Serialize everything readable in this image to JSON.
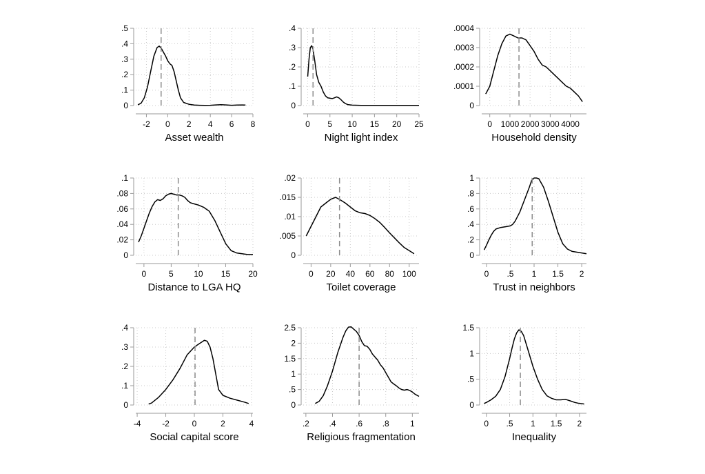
{
  "chart_data": [
    {
      "type": "line",
      "xlabel": "Asset wealth",
      "x_ticks": [
        -2,
        0,
        2,
        4,
        6,
        8
      ],
      "x_tick_labels": [
        "-2",
        "0",
        "2",
        "4",
        "6",
        "8"
      ],
      "y_ticks": [
        0,
        0.1,
        0.2,
        0.3,
        0.4,
        0.5
      ],
      "y_tick_labels": [
        "0",
        ".1",
        ".2",
        ".3",
        ".4",
        ".5"
      ],
      "xlim": [
        -3,
        8
      ],
      "ylim": [
        0,
        0.5
      ],
      "reference_line_x": -0.62,
      "x": [
        -2.8,
        -2.5,
        -2.2,
        -1.9,
        -1.6,
        -1.3,
        -1.0,
        -0.8,
        -0.6,
        -0.4,
        -0.2,
        0.0,
        0.2,
        0.4,
        0.6,
        0.8,
        1.0,
        1.2,
        1.5,
        2.0,
        2.5,
        3.0,
        3.5,
        4.0,
        4.5,
        5.0,
        5.5,
        6.0,
        6.5,
        7.0,
        7.3
      ],
      "y": [
        0.005,
        0.015,
        0.05,
        0.12,
        0.22,
        0.32,
        0.375,
        0.385,
        0.37,
        0.345,
        0.32,
        0.29,
        0.27,
        0.26,
        0.22,
        0.16,
        0.1,
        0.05,
        0.02,
        0.008,
        0.003,
        0.002,
        0.001,
        0.002,
        0.004,
        0.006,
        0.004,
        0.002,
        0.003,
        0.004,
        0.003
      ]
    },
    {
      "type": "line",
      "xlabel": "Night light index",
      "x_ticks": [
        0,
        5,
        10,
        15,
        20,
        25
      ],
      "x_tick_labels": [
        "0",
        "5",
        "10",
        "15",
        "20",
        "25"
      ],
      "y_ticks": [
        0,
        0.1,
        0.2,
        0.3,
        0.4
      ],
      "y_tick_labels": [
        "0",
        ".1",
        ".2",
        ".3",
        ".4"
      ],
      "xlim": [
        -1,
        25
      ],
      "ylim": [
        0,
        0.4
      ],
      "reference_line_x": 1.2,
      "x": [
        0.0,
        0.3,
        0.6,
        0.9,
        1.2,
        1.6,
        2.0,
        2.5,
        3.0,
        3.5,
        4.0,
        4.5,
        5.0,
        5.5,
        6.0,
        6.5,
        7.0,
        7.5,
        8.0,
        8.5,
        9.0,
        10.0,
        12.0,
        14.0,
        16.0,
        18.0,
        20.0,
        22.0,
        24.0,
        25.0
      ],
      "y": [
        0.15,
        0.24,
        0.3,
        0.31,
        0.29,
        0.23,
        0.16,
        0.12,
        0.1,
        0.07,
        0.05,
        0.04,
        0.038,
        0.036,
        0.04,
        0.045,
        0.04,
        0.03,
        0.018,
        0.01,
        0.005,
        0.002,
        0.001,
        0.001,
        0.001,
        0.001,
        0.001,
        0.001,
        0.001,
        0.001
      ]
    },
    {
      "type": "line",
      "xlabel": "Household density",
      "x_ticks": [
        0,
        1000,
        2000,
        3000,
        4000
      ],
      "x_tick_labels": [
        "0",
        "1000",
        "2000",
        "3000",
        "4000"
      ],
      "y_ticks": [
        0,
        0.0001,
        0.0002,
        0.0003,
        0.0004
      ],
      "y_tick_labels": [
        "0",
        ".0001",
        ".0002",
        ".0003",
        ".0004"
      ],
      "xlim": [
        -400,
        4800
      ],
      "ylim": [
        0,
        0.0004
      ],
      "reference_line_x": 1450,
      "x": [
        -200,
        0,
        200,
        400,
        600,
        800,
        1000,
        1200,
        1400,
        1600,
        1800,
        2000,
        2200,
        2400,
        2600,
        2800,
        3000,
        3200,
        3400,
        3600,
        3800,
        4000,
        4200,
        4400,
        4600
      ],
      "y": [
        6e-05,
        0.0001,
        0.00018,
        0.00026,
        0.00032,
        0.00036,
        0.00037,
        0.00036,
        0.00035,
        0.00035,
        0.00034,
        0.00031,
        0.00028,
        0.00024,
        0.00021,
        0.0002,
        0.00018,
        0.00016,
        0.00014,
        0.00012,
        0.0001,
        9e-05,
        7e-05,
        5e-05,
        2e-05
      ]
    },
    {
      "type": "line",
      "xlabel": "Distance to LGA HQ",
      "x_ticks": [
        0,
        5,
        10,
        15,
        20
      ],
      "x_tick_labels": [
        "0",
        "5",
        "10",
        "15",
        "20"
      ],
      "y_ticks": [
        0,
        0.02,
        0.04,
        0.06,
        0.08,
        0.1
      ],
      "y_tick_labels": [
        "0",
        ".02",
        ".04",
        ".06",
        ".08",
        ".1"
      ],
      "xlim": [
        -1.5,
        20
      ],
      "ylim": [
        0,
        0.1
      ],
      "reference_line_x": 6.3,
      "x": [
        -1.0,
        -0.5,
        0.0,
        0.5,
        1.0,
        1.5,
        2.0,
        2.5,
        3.0,
        3.5,
        4.0,
        4.5,
        5.0,
        5.5,
        6.0,
        6.5,
        7.0,
        7.5,
        8.0,
        8.5,
        9.0,
        9.5,
        10.0,
        11.0,
        12.0,
        13.0,
        14.0,
        15.0,
        16.0,
        17.0,
        18.0,
        19.0,
        20.0
      ],
      "y": [
        0.017,
        0.025,
        0.035,
        0.045,
        0.055,
        0.063,
        0.069,
        0.072,
        0.071,
        0.073,
        0.077,
        0.079,
        0.08,
        0.079,
        0.078,
        0.078,
        0.077,
        0.075,
        0.071,
        0.068,
        0.067,
        0.066,
        0.065,
        0.062,
        0.057,
        0.045,
        0.03,
        0.015,
        0.006,
        0.003,
        0.002,
        0.001,
        0.001
      ]
    },
    {
      "type": "line",
      "xlabel": "Toilet coverage",
      "x_ticks": [
        0,
        20,
        40,
        60,
        80,
        100
      ],
      "x_tick_labels": [
        "0",
        "20",
        "40",
        "60",
        "80",
        "100"
      ],
      "y_ticks": [
        0,
        0.005,
        0.01,
        0.015,
        0.02
      ],
      "y_tick_labels": [
        "0",
        ".005",
        ".01",
        ".015",
        ".02"
      ],
      "xlim": [
        -8,
        110
      ],
      "ylim": [
        0,
        0.02
      ],
      "reference_line_x": 29,
      "x": [
        -5,
        0,
        5,
        10,
        15,
        20,
        25,
        30,
        35,
        40,
        45,
        50,
        55,
        60,
        65,
        70,
        75,
        80,
        85,
        90,
        95,
        100,
        105
      ],
      "y": [
        0.005,
        0.0075,
        0.01,
        0.0125,
        0.0135,
        0.0145,
        0.015,
        0.0143,
        0.0135,
        0.0125,
        0.0115,
        0.011,
        0.0108,
        0.0103,
        0.0095,
        0.0085,
        0.0072,
        0.0058,
        0.0045,
        0.0032,
        0.002,
        0.0012,
        0.0004
      ]
    },
    {
      "type": "line",
      "xlabel": "Trust in neighbors",
      "x_ticks": [
        0,
        0.5,
        1,
        1.5,
        2
      ],
      "x_tick_labels": [
        "0",
        ".5",
        "1",
        "1.5",
        "2"
      ],
      "y_ticks": [
        0,
        0.2,
        0.4,
        0.6,
        0.8,
        1
      ],
      "y_tick_labels": [
        "0",
        ".2",
        ".4",
        ".6",
        ".8",
        "1"
      ],
      "xlim": [
        -0.1,
        2.1
      ],
      "ylim": [
        0,
        1
      ],
      "reference_line_x": 0.96,
      "x": [
        -0.05,
        0.0,
        0.05,
        0.1,
        0.15,
        0.2,
        0.3,
        0.4,
        0.5,
        0.55,
        0.6,
        0.7,
        0.8,
        0.9,
        0.95,
        1.0,
        1.05,
        1.1,
        1.2,
        1.3,
        1.4,
        1.5,
        1.6,
        1.7,
        1.8,
        1.9,
        2.0,
        2.1
      ],
      "y": [
        0.07,
        0.13,
        0.2,
        0.26,
        0.31,
        0.34,
        0.36,
        0.37,
        0.38,
        0.4,
        0.44,
        0.56,
        0.72,
        0.88,
        0.97,
        1.0,
        1.0,
        0.99,
        0.88,
        0.7,
        0.5,
        0.3,
        0.15,
        0.08,
        0.05,
        0.04,
        0.03,
        0.02
      ]
    },
    {
      "type": "line",
      "xlabel": "Social capital score",
      "x_ticks": [
        -4,
        -2,
        0,
        2,
        4
      ],
      "x_tick_labels": [
        "-4",
        "-2",
        "0",
        "2",
        "4"
      ],
      "y_ticks": [
        0,
        0.1,
        0.2,
        0.3,
        0.4
      ],
      "y_tick_labels": [
        "0",
        ".1",
        ".2",
        ".3",
        ".4"
      ],
      "xlim": [
        -4.1,
        4.1
      ],
      "ylim": [
        0,
        0.4
      ],
      "reference_line_x": 0.05,
      "x": [
        -3.2,
        -3.0,
        -2.5,
        -2.0,
        -1.5,
        -1.0,
        -0.5,
        0.0,
        0.3,
        0.5,
        0.7,
        0.9,
        1.1,
        1.3,
        1.5,
        1.7,
        2.0,
        2.5,
        3.0,
        3.5,
        3.8
      ],
      "y": [
        0.005,
        0.01,
        0.04,
        0.08,
        0.13,
        0.19,
        0.26,
        0.3,
        0.315,
        0.325,
        0.335,
        0.33,
        0.3,
        0.24,
        0.16,
        0.08,
        0.05,
        0.035,
        0.025,
        0.015,
        0.008
      ]
    },
    {
      "type": "line",
      "xlabel": "Religious fragmentation",
      "x_ticks": [
        0.2,
        0.4,
        0.6,
        0.8,
        1
      ],
      "x_tick_labels": [
        ".2",
        ".4",
        ".6",
        ".8",
        "1"
      ],
      "y_ticks": [
        0,
        0.5,
        1,
        1.5,
        2,
        2.5
      ],
      "y_tick_labels": [
        "0",
        ".5",
        "1",
        "1.5",
        "2",
        "2.5"
      ],
      "xlim": [
        0.18,
        1.05
      ],
      "ylim": [
        0,
        2.5
      ],
      "reference_line_x": 0.6,
      "x": [
        0.27,
        0.3,
        0.33,
        0.36,
        0.4,
        0.44,
        0.48,
        0.5,
        0.52,
        0.54,
        0.56,
        0.58,
        0.6,
        0.62,
        0.64,
        0.66,
        0.68,
        0.7,
        0.72,
        0.74,
        0.76,
        0.78,
        0.8,
        0.82,
        0.84,
        0.86,
        0.88,
        0.9,
        0.92,
        0.94,
        0.96,
        0.98,
        1.0,
        1.02,
        1.05
      ],
      "y": [
        0.05,
        0.12,
        0.3,
        0.6,
        1.1,
        1.7,
        2.2,
        2.4,
        2.52,
        2.53,
        2.45,
        2.38,
        2.25,
        2.05,
        1.92,
        1.9,
        1.8,
        1.65,
        1.55,
        1.45,
        1.3,
        1.2,
        1.05,
        0.9,
        0.75,
        0.68,
        0.62,
        0.55,
        0.5,
        0.48,
        0.5,
        0.47,
        0.42,
        0.35,
        0.28
      ]
    },
    {
      "type": "line",
      "xlabel": "Inequality",
      "x_ticks": [
        0,
        0.5,
        1,
        1.5,
        2
      ],
      "x_tick_labels": [
        "0",
        ".5",
        "1",
        "1.5",
        "2"
      ],
      "y_ticks": [
        0,
        0.5,
        1,
        1.5
      ],
      "y_tick_labels": [
        "0",
        ".5",
        "1",
        "1.5"
      ],
      "xlim": [
        -0.1,
        2.15
      ],
      "ylim": [
        0,
        1.5
      ],
      "reference_line_x": 0.73,
      "x": [
        -0.05,
        0.0,
        0.1,
        0.2,
        0.3,
        0.4,
        0.5,
        0.55,
        0.6,
        0.65,
        0.7,
        0.75,
        0.8,
        0.85,
        0.9,
        1.0,
        1.1,
        1.2,
        1.3,
        1.4,
        1.5,
        1.6,
        1.7,
        1.8,
        1.9,
        2.0,
        2.1
      ],
      "y": [
        0.03,
        0.05,
        0.1,
        0.17,
        0.3,
        0.55,
        0.9,
        1.1,
        1.28,
        1.4,
        1.46,
        1.43,
        1.35,
        1.2,
        1.05,
        0.75,
        0.5,
        0.3,
        0.18,
        0.13,
        0.1,
        0.1,
        0.11,
        0.08,
        0.05,
        0.03,
        0.02
      ]
    }
  ]
}
